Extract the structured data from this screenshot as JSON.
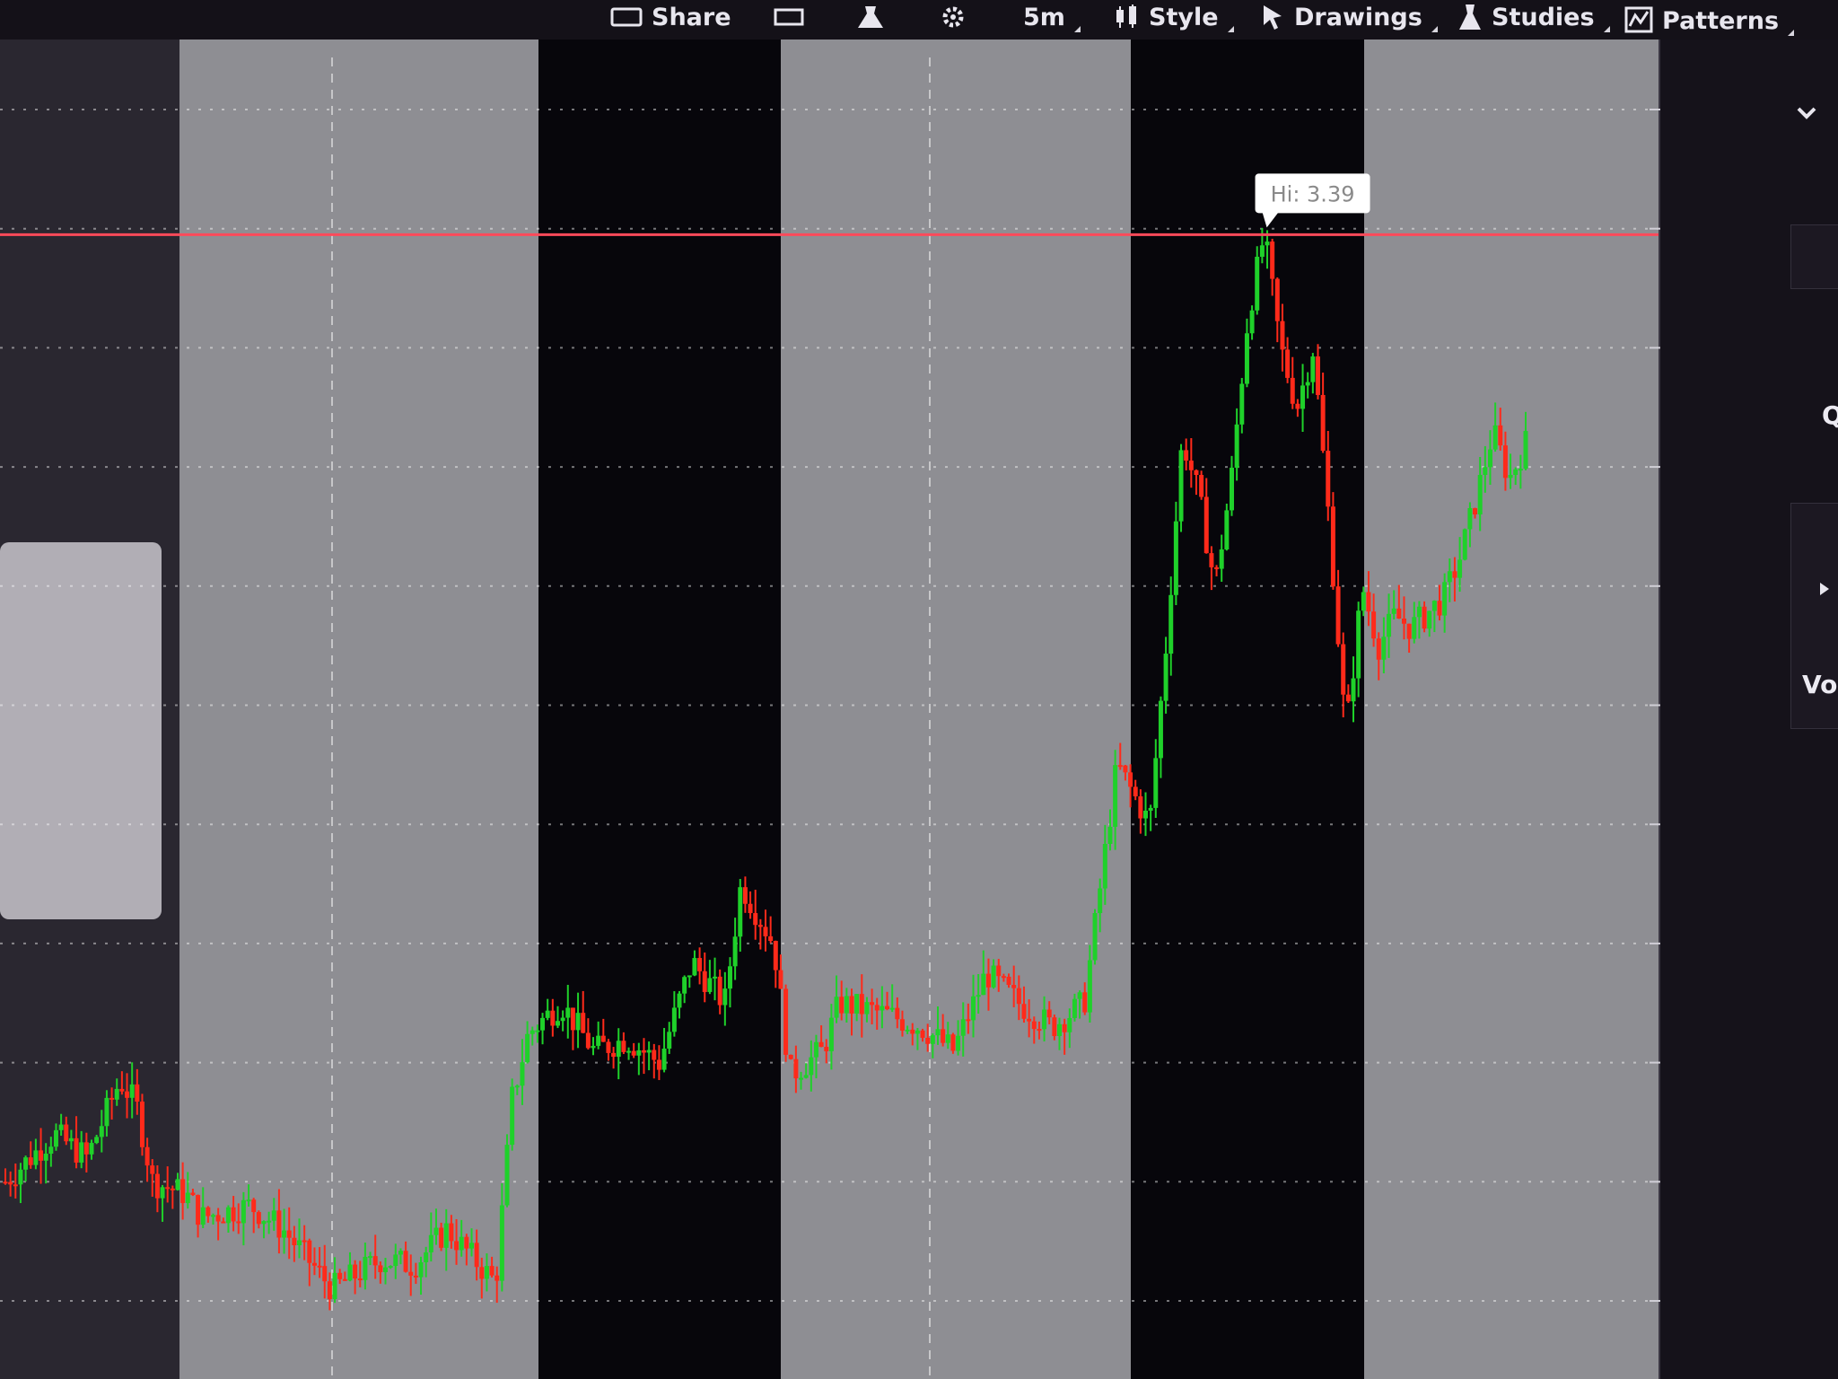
{
  "toolbar": {
    "items": [
      {
        "label": "Share",
        "icon": "share-icon"
      },
      {
        "label": "",
        "icon": "screenshot-icon"
      },
      {
        "label": "",
        "icon": "flask-icon"
      },
      {
        "label": "",
        "icon": "gear-icon"
      },
      {
        "label": "5m",
        "icon": ""
      },
      {
        "label": "Style",
        "icon": "candles-icon"
      },
      {
        "label": "Drawings",
        "icon": "cursor-icon"
      },
      {
        "label": "Studies",
        "icon": "beaker-icon"
      },
      {
        "label": "Patterns",
        "icon": "patterns-icon"
      }
    ]
  },
  "side_panel": {
    "label_q": "Q",
    "label_vol": "Vol"
  },
  "colors": {
    "up": "#1fd12a",
    "down": "#ff2a1a",
    "hi_line": "#ff4a5a",
    "last_badge": "#19cc22",
    "session_dark": "#07060b",
    "session_light": "#8e8e93"
  },
  "chart_data": {
    "type": "candlestick",
    "interval": "5m",
    "y_axis": {
      "ticks": [
        "3.6",
        "3.4",
        "3.2",
        "3",
        "2.8",
        "2.6",
        "2.4",
        "2.2",
        "2",
        "1.8",
        "1.6"
      ],
      "range": [
        1.6,
        3.6
      ]
    },
    "hi_label": "Hi: 3.39",
    "hi_value": 3.39,
    "last_price": "3.04",
    "sessions": [
      "light",
      "dark",
      "light",
      "dark",
      "light"
    ],
    "price_path": [
      [
        0,
        1.8
      ],
      [
        3,
        1.88
      ],
      [
        5,
        1.84
      ],
      [
        7,
        1.97
      ],
      [
        8,
        1.93
      ],
      [
        9,
        1.8
      ],
      [
        11,
        1.78
      ],
      [
        12,
        1.74
      ],
      [
        15,
        1.76
      ],
      [
        17,
        1.72
      ],
      [
        20,
        1.62
      ],
      [
        23,
        1.67
      ],
      [
        25,
        1.66
      ],
      [
        27,
        1.72
      ],
      [
        29,
        1.66
      ],
      [
        30,
        1.63
      ],
      [
        31,
        1.94
      ],
      [
        32,
        2.05
      ],
      [
        34,
        2.1
      ],
      [
        36,
        2.02
      ],
      [
        38,
        2.04
      ],
      [
        40,
        2.0
      ],
      [
        42,
        2.17
      ],
      [
        44,
        2.1
      ],
      [
        45,
        2.3
      ],
      [
        47,
        2.2
      ],
      [
        48,
        1.98
      ],
      [
        50,
        2.02
      ],
      [
        51,
        2.1
      ],
      [
        54,
        2.08
      ],
      [
        56,
        2.06
      ],
      [
        58,
        2.02
      ],
      [
        60,
        2.15
      ],
      [
        62,
        2.1
      ],
      [
        64,
        2.06
      ],
      [
        66,
        2.1
      ],
      [
        67,
        2.3
      ],
      [
        68,
        2.5
      ],
      [
        70,
        2.4
      ],
      [
        71,
        2.7
      ],
      [
        72,
        3.05
      ],
      [
        73,
        2.95
      ],
      [
        74,
        2.8
      ],
      [
        75,
        2.98
      ],
      [
        76,
        3.25
      ],
      [
        77,
        3.39
      ],
      [
        78,
        3.2
      ],
      [
        79,
        3.1
      ],
      [
        80,
        3.2
      ],
      [
        81,
        2.9
      ],
      [
        82,
        2.55
      ],
      [
        83,
        2.8
      ],
      [
        84,
        2.7
      ],
      [
        85,
        2.75
      ],
      [
        86,
        2.73
      ],
      [
        88,
        2.78
      ],
      [
        89,
        2.85
      ],
      [
        90,
        2.95
      ],
      [
        91,
        3.06
      ],
      [
        92,
        2.98
      ],
      [
        93,
        3.04
      ]
    ]
  }
}
